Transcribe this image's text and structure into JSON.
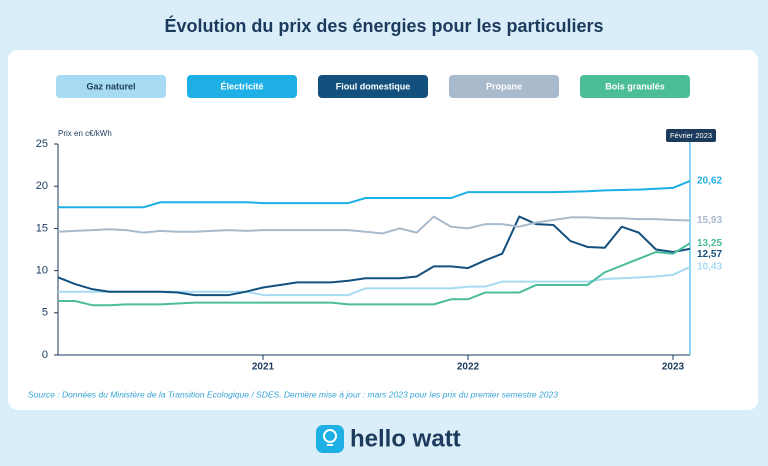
{
  "chart_data": {
    "type": "line",
    "title": "Évolution du prix des énergies pour les particuliers",
    "y_label": "Prix en c€/kWh",
    "source": "Source : Données du Ministère de la Transition Ecologique / SDES. Dernière mise à jour : mars 2023 pour les prix du premier semestre 2023",
    "annotation": {
      "x": 2023.083,
      "label": "Février 2023"
    },
    "x": [
      2020,
      2020.083,
      2020.167,
      2020.25,
      2020.333,
      2020.417,
      2020.5,
      2020.583,
      2020.667,
      2020.75,
      2020.833,
      2020.917,
      2021,
      2021.083,
      2021.167,
      2021.25,
      2021.333,
      2021.417,
      2021.5,
      2021.583,
      2021.667,
      2021.75,
      2021.833,
      2021.917,
      2022,
      2022.083,
      2022.167,
      2022.25,
      2022.333,
      2022.417,
      2022.5,
      2022.583,
      2022.667,
      2022.75,
      2022.833,
      2022.917,
      2023,
      2023.083
    ],
    "xlim": [
      2020,
      2023.083
    ],
    "xticks": [
      2021,
      2022,
      2023
    ],
    "ylim": [
      0,
      25
    ],
    "yticks": [
      0,
      5,
      10,
      15,
      20,
      25
    ],
    "grid": false,
    "series": [
      {
        "name": "Gaz naturel",
        "color": "#a6dbf3",
        "text_color": "#1b3a5c",
        "end_label": "10,43",
        "values": [
          7.5,
          7.5,
          7.5,
          7.5,
          7.5,
          7.5,
          7.5,
          7.5,
          7.5,
          7.5,
          7.5,
          7.5,
          7.1,
          7.1,
          7.1,
          7.1,
          7.1,
          7.1,
          7.9,
          7.9,
          7.9,
          7.9,
          7.9,
          7.9,
          8.1,
          8.1,
          8.7,
          8.7,
          8.7,
          8.7,
          8.7,
          8.7,
          9.0,
          9.1,
          9.2,
          9.3,
          9.5,
          10.43
        ]
      },
      {
        "name": "Électricité",
        "color": "#1eafe5",
        "text_color": "#ffffff",
        "end_label": "20,62",
        "values": [
          17.5,
          17.5,
          17.5,
          17.5,
          17.5,
          17.5,
          18.1,
          18.1,
          18.1,
          18.1,
          18.1,
          18.1,
          18.0,
          18.0,
          18.0,
          18.0,
          18.0,
          18.0,
          18.6,
          18.6,
          18.6,
          18.6,
          18.6,
          18.6,
          19.3,
          19.3,
          19.3,
          19.3,
          19.3,
          19.3,
          19.35,
          19.4,
          19.5,
          19.55,
          19.6,
          19.7,
          19.8,
          20.62
        ]
      },
      {
        "name": "Fioul domestique",
        "color": "#14507e",
        "text_color": "#ffffff",
        "end_label": "12,57",
        "values": [
          9.2,
          8.4,
          7.8,
          7.5,
          7.5,
          7.5,
          7.5,
          7.4,
          7.1,
          7.1,
          7.1,
          7.5,
          8.0,
          8.3,
          8.6,
          8.6,
          8.6,
          8.8,
          9.1,
          9.1,
          9.1,
          9.3,
          10.5,
          10.5,
          10.3,
          11.2,
          12.0,
          16.4,
          15.5,
          15.4,
          13.5,
          12.8,
          12.7,
          15.2,
          14.5,
          12.5,
          12.2,
          12.57
        ]
      },
      {
        "name": "Propane",
        "color": "#a8bacb",
        "text_color": "#ffffff",
        "end_label": "15,93",
        "values": [
          14.6,
          14.7,
          14.8,
          14.9,
          14.8,
          14.5,
          14.7,
          14.6,
          14.6,
          14.7,
          14.8,
          14.7,
          14.8,
          14.8,
          14.8,
          14.8,
          14.8,
          14.8,
          14.6,
          14.4,
          15.0,
          14.5,
          16.4,
          15.2,
          15.0,
          15.5,
          15.5,
          15.2,
          15.7,
          16.0,
          16.3,
          16.3,
          16.2,
          16.2,
          16.1,
          16.1,
          16.0,
          15.93
        ]
      },
      {
        "name": "Bois granulés",
        "color": "#4cbd99",
        "text_color": "#ffffff",
        "end_label": "13,25",
        "values": [
          6.4,
          6.4,
          5.9,
          5.9,
          6.0,
          6.0,
          6.0,
          6.1,
          6.2,
          6.2,
          6.2,
          6.2,
          6.2,
          6.2,
          6.2,
          6.2,
          6.2,
          6.0,
          6.0,
          6.0,
          6.0,
          6.0,
          6.0,
          6.6,
          6.6,
          7.4,
          7.4,
          7.4,
          8.3,
          8.3,
          8.3,
          8.3,
          9.8,
          10.6,
          11.4,
          12.2,
          12.0,
          13.25
        ]
      }
    ],
    "brand": "hello watt"
  }
}
